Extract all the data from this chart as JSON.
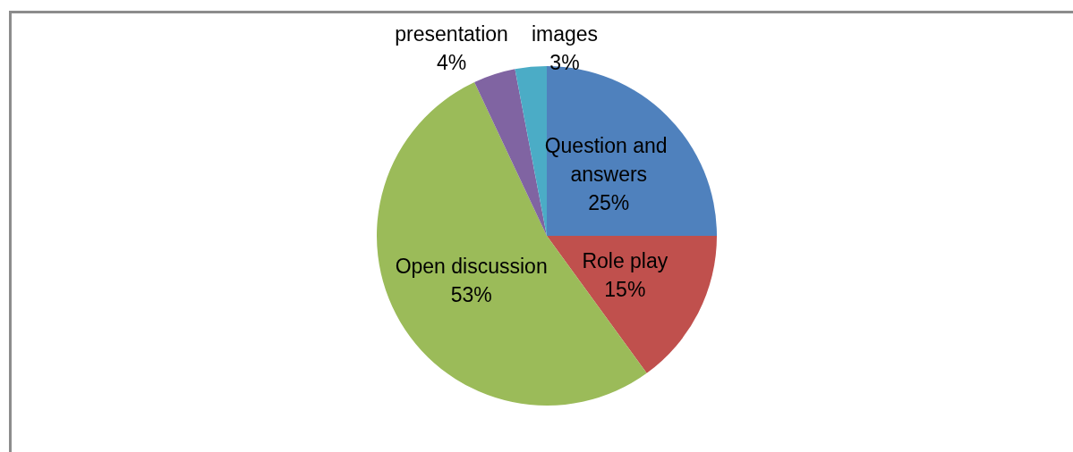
{
  "chart_data": {
    "type": "pie",
    "categories": [
      "Question and answers",
      "Role play",
      "Open discussion",
      "presentation",
      "images"
    ],
    "values": [
      25,
      15,
      53,
      4,
      3
    ],
    "colors": [
      "#4f81bd",
      "#c0504d",
      "#9bbb59",
      "#8064a2",
      "#4bacc6"
    ],
    "value_labels": [
      "25%",
      "15%",
      "53%",
      "4%",
      "3%"
    ],
    "legend": false
  }
}
